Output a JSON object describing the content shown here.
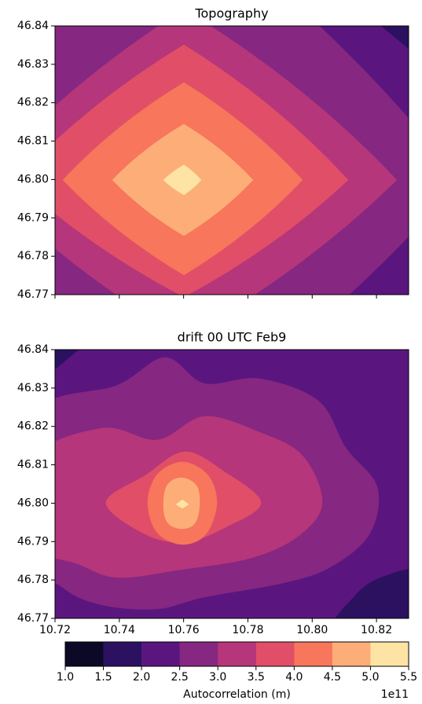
{
  "chart_data": [
    {
      "type": "contour",
      "title": "Topography",
      "xlim": [
        10.72,
        10.83
      ],
      "ylim": [
        46.77,
        46.84
      ],
      "xticks": [
        10.72,
        10.74,
        10.76,
        10.78,
        {
          "value": 10.8,
          "label": "10.80"
        },
        10.82
      ],
      "yticks": [
        46.77,
        46.78,
        46.79,
        {
          "value": 46.8,
          "label": "46.80"
        },
        46.81,
        46.82,
        46.83,
        46.84
      ],
      "show_xtick_labels": false
    },
    {
      "type": "contour",
      "title": "drift 00 UTC Feb9",
      "xlim": [
        10.72,
        10.83
      ],
      "ylim": [
        46.77,
        46.84
      ],
      "xticks": [
        10.72,
        10.74,
        10.76,
        10.78,
        {
          "value": 10.8,
          "label": "10.80"
        },
        10.82
      ],
      "yticks": [
        46.77,
        46.78,
        46.79,
        {
          "value": 46.8,
          "label": "46.80"
        },
        46.81,
        46.82,
        46.83,
        46.84
      ],
      "show_xtick_labels": true
    },
    {
      "type": "colorbar",
      "label": "Autocorrelation (m)",
      "offset_label": "1e11",
      "levels": [
        {
          "value": 1,
          "label": "1.0"
        },
        1.5,
        {
          "value": 2,
          "label": "2.0"
        },
        2.5,
        {
          "value": 3,
          "label": "3.0"
        },
        3.5,
        {
          "value": 4,
          "label": "4.0"
        },
        4.5,
        {
          "value": 5,
          "label": "5.0"
        },
        5.5
      ],
      "colors": [
        "#0c0926",
        "#2c1160",
        "#5a167e",
        "#862781",
        "#b5367a",
        "#e04f67",
        "#f7765c",
        "#fdae78",
        "#fde4a5"
      ]
    }
  ]
}
